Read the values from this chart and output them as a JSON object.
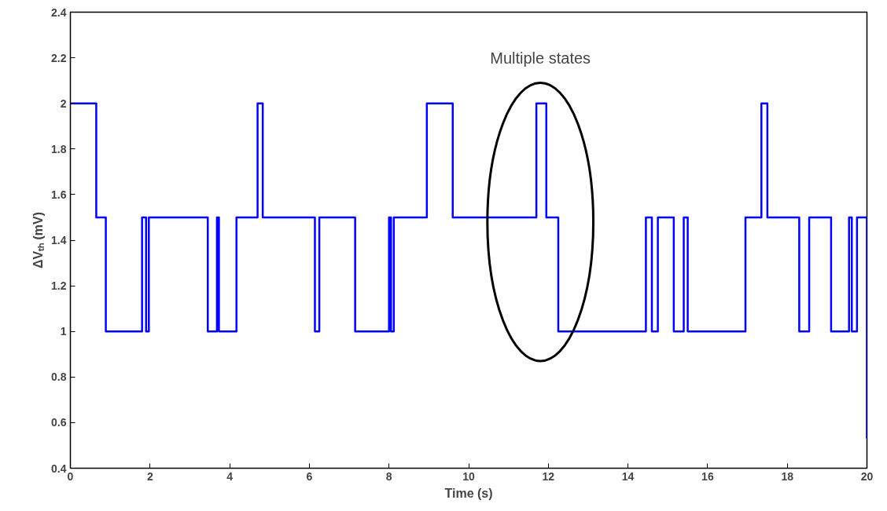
{
  "chart_data": {
    "type": "step",
    "xlabel": "Time (s)",
    "ylabel": "ΔVₜₕ (mV)",
    "x": [
      0,
      0.65,
      0.89,
      1.8,
      1.9,
      1.97,
      3.45,
      3.68,
      3.73,
      4.17,
      4.7,
      4.83,
      6.14,
      6.25,
      7.15,
      8.0,
      8.05,
      8.12,
      8.95,
      9.6,
      11.7,
      11.95,
      12.25,
      14.45,
      14.6,
      14.75,
      15.15,
      15.4,
      15.5,
      16.95,
      17.35,
      17.5,
      18.3,
      18.55,
      19.1,
      19.55,
      19.62,
      19.75,
      20
    ],
    "series": [
      {
        "color": "#0000ff",
        "values": [
          2,
          1.5,
          1,
          1.5,
          1,
          1.5,
          1,
          1.5,
          1,
          1.5,
          2,
          1.5,
          1,
          1.5,
          1,
          1.5,
          1,
          1.5,
          2,
          1.5,
          2,
          1.5,
          1,
          1.5,
          1,
          1.5,
          1,
          1.5,
          1,
          1.5,
          2,
          1.5,
          1,
          1.5,
          1,
          1.5,
          1,
          1.5,
          0.53
        ]
      }
    ],
    "xlim": [
      0,
      20
    ],
    "ylim": [
      0.4,
      2.4
    ],
    "xticks": [
      0,
      2,
      4,
      6,
      8,
      10,
      12,
      14,
      16,
      18,
      20
    ],
    "yticks": [
      0.4,
      0.6,
      0.8,
      1,
      1.2,
      1.4,
      1.6,
      1.8,
      2,
      2.2,
      2.4
    ],
    "annotations": [
      "Multiple states"
    ],
    "grid": false
  }
}
